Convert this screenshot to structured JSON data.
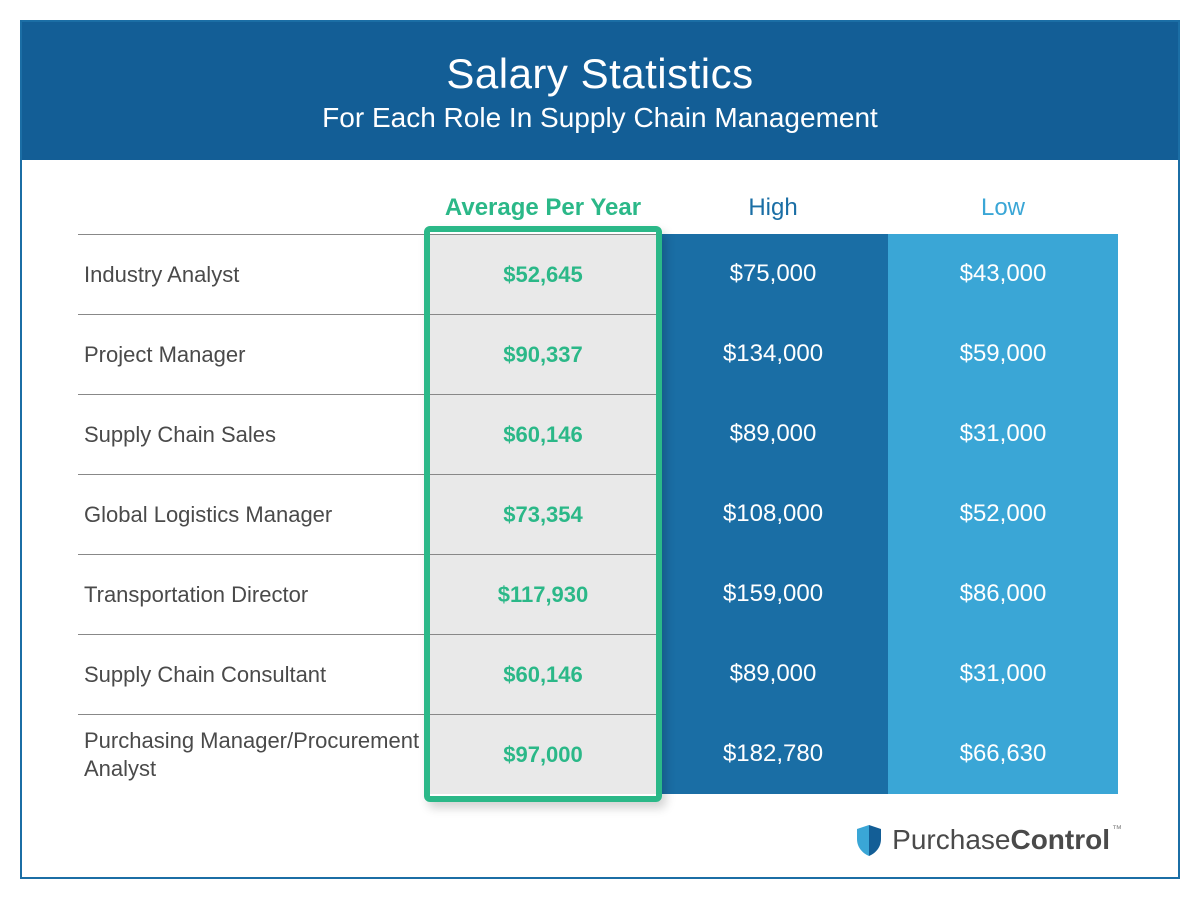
{
  "colors": {
    "header_bg": "#135e96",
    "border": "#1b6ea5",
    "role_text": "#4a4a4a",
    "avg_text": "#2bb888",
    "avg_bg": "#e9e9e9",
    "avg_border": "#2bb888",
    "high_bg": "#1a6ea5",
    "low_bg": "#3aa6d6",
    "col_head_high": "#1a6ea5",
    "col_head_low": "#3aa6d6",
    "divider": "#888888",
    "white": "#ffffff"
  },
  "header": {
    "title": "Salary Statistics",
    "subtitle": "For Each Role In Supply Chain Management"
  },
  "columns": {
    "avg": "Average Per Year",
    "high": "High",
    "low": "Low"
  },
  "rows": [
    {
      "role": "Industry Analyst",
      "avg": "$52,645",
      "high": "$75,000",
      "low": "$43,000"
    },
    {
      "role": "Project Manager",
      "avg": "$90,337",
      "high": "$134,000",
      "low": "$59,000"
    },
    {
      "role": "Supply Chain Sales",
      "avg": "$60,146",
      "high": "$89,000",
      "low": "$31,000"
    },
    {
      "role": "Global Logistics Manager",
      "avg": "$73,354",
      "high": "$108,000",
      "low": "$52,000"
    },
    {
      "role": "Transportation Director",
      "avg": "$117,930",
      "high": "$159,000",
      "low": "$86,000"
    },
    {
      "role": "Supply Chain Consultant",
      "avg": "$60,146",
      "high": "$89,000",
      "low": "$31,000"
    },
    {
      "role": "Purchasing Manager/Procurement Analyst",
      "avg": "$97,000",
      "high": "$182,780",
      "low": "$66,630"
    }
  ],
  "footer": {
    "brand_light": "Purchase",
    "brand_bold": "Control",
    "tm": "™"
  }
}
